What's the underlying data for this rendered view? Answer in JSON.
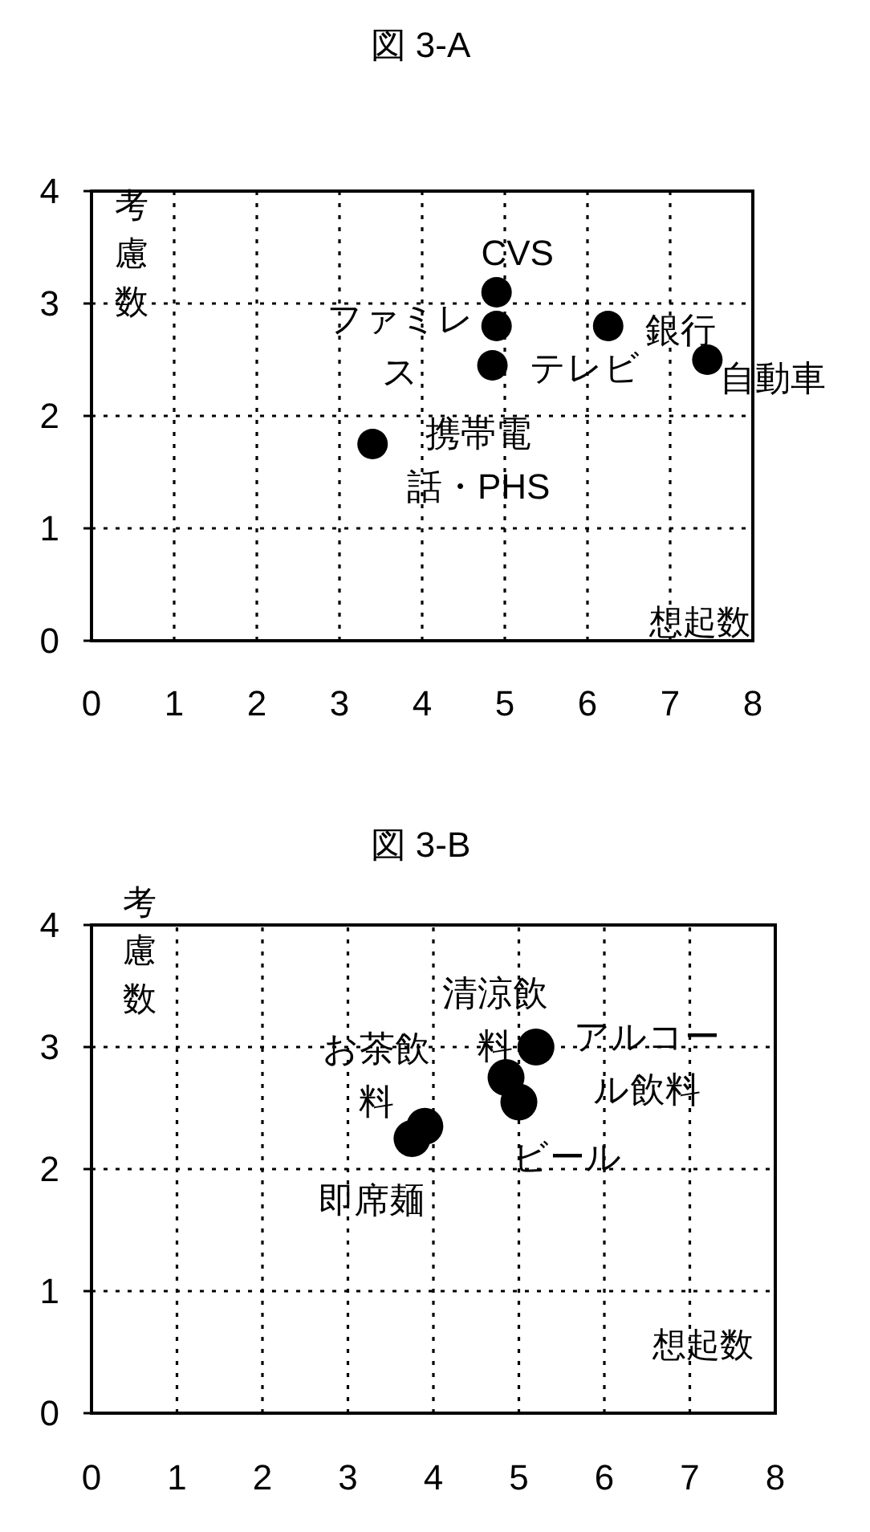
{
  "chart_data": [
    {
      "type": "scatter",
      "title": "図 3-A",
      "xlabel": "想起数",
      "ylabel": "考慮数",
      "xlim": [
        0,
        8
      ],
      "ylim": [
        0,
        4
      ],
      "xticks": [
        0,
        1,
        2,
        3,
        4,
        5,
        6,
        7,
        8
      ],
      "yticks": [
        0,
        1,
        2,
        3,
        4
      ],
      "grid": true,
      "marker": "circle",
      "color": "#000000",
      "x": [
        4.9,
        4.9,
        4.85,
        6.25,
        7.45,
        3.4
      ],
      "values": [
        3.1,
        2.8,
        2.45,
        2.8,
        2.5,
        1.75
      ],
      "annotations": [
        {
          "text": "CVS",
          "x": 4.9,
          "y": 3.1
        },
        {
          "text": "ファミレス",
          "x": 4.9,
          "y": 2.8
        },
        {
          "text": "テレビ",
          "x": 4.85,
          "y": 2.45
        },
        {
          "text": "銀行",
          "x": 6.25,
          "y": 2.8
        },
        {
          "text": "自動車",
          "x": 7.45,
          "y": 2.5
        },
        {
          "text": "携帯電話・PHS",
          "x": 3.4,
          "y": 1.75
        }
      ]
    },
    {
      "type": "scatter",
      "title": "図 3-B",
      "xlabel": "想起数",
      "ylabel": "考慮数",
      "xlim": [
        0,
        8
      ],
      "ylim": [
        0,
        4
      ],
      "xticks": [
        0,
        1,
        2,
        3,
        4,
        5,
        6,
        7,
        8
      ],
      "yticks": [
        0,
        1,
        2,
        3,
        4
      ],
      "grid": true,
      "marker": "circle",
      "color": "#000000",
      "x": [
        5.2,
        4.85,
        5.0,
        3.9,
        3.75
      ],
      "values": [
        3.0,
        2.75,
        2.55,
        2.35,
        2.25
      ],
      "annotations": [
        {
          "text": "アルコール飲料",
          "x": 5.2,
          "y": 3.0
        },
        {
          "text": "清涼飲料",
          "x": 4.85,
          "y": 2.75
        },
        {
          "text": "ビール",
          "x": 5.0,
          "y": 2.55
        },
        {
          "text": "お茶飲料",
          "x": 3.9,
          "y": 2.35
        },
        {
          "text": "即席麺",
          "x": 3.75,
          "y": 2.25
        }
      ]
    }
  ]
}
